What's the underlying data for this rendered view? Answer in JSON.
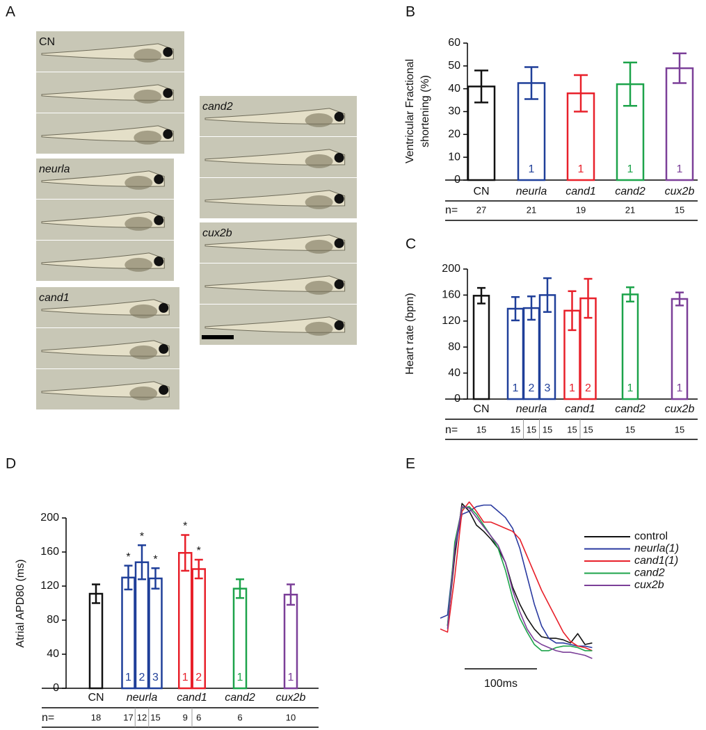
{
  "panels": [
    "A",
    "B",
    "C",
    "D",
    "E"
  ],
  "fish_panel": {
    "groups": [
      {
        "label": "CN",
        "italic": false
      },
      {
        "label": "neurla",
        "italic": true
      },
      {
        "label": "cand1",
        "italic": true
      },
      {
        "label": "cand2",
        "italic": true
      },
      {
        "label": "cux2b",
        "italic": true
      }
    ]
  },
  "chart_data": [
    {
      "type": "grouped_bar",
      "ylabel": [
        "Ventricular Fractional",
        "shortening (%)"
      ],
      "ylim": [
        0,
        60
      ],
      "yticks": [
        0,
        10,
        20,
        30,
        40,
        50,
        60
      ],
      "n_label": "n=",
      "groups": [
        {
          "name": "CN",
          "italic": false,
          "color": "#111111",
          "values": [
            41
          ],
          "errors": [
            7
          ],
          "bar_labels": [
            null
          ],
          "n": [
            27
          ],
          "annotations": [
            null
          ]
        },
        {
          "name": "neurla",
          "italic": true,
          "color": "#1f3f99",
          "values": [
            42.5
          ],
          "errors": [
            7
          ],
          "bar_labels": [
            "1"
          ],
          "n": [
            21
          ],
          "annotations": [
            null
          ]
        },
        {
          "name": "cand1",
          "italic": true,
          "color": "#e8202a",
          "values": [
            38
          ],
          "errors": [
            8
          ],
          "bar_labels": [
            "1"
          ],
          "n": [
            19
          ],
          "annotations": [
            null
          ]
        },
        {
          "name": "cand2",
          "italic": true,
          "color": "#1ca34a",
          "values": [
            42
          ],
          "errors": [
            9.5
          ],
          "bar_labels": [
            "1"
          ],
          "n": [
            21
          ],
          "annotations": [
            null
          ]
        },
        {
          "name": "cux2b",
          "italic": true,
          "color": "#7b3f98",
          "values": [
            49
          ],
          "errors": [
            6.5
          ],
          "bar_labels": [
            "1"
          ],
          "n": [
            15
          ],
          "annotations": [
            null
          ]
        }
      ]
    },
    {
      "type": "grouped_bar",
      "ylabel": [
        "Heart rate (bpm)"
      ],
      "ylim": [
        0,
        200
      ],
      "yticks": [
        0,
        40,
        80,
        120,
        160,
        200
      ],
      "n_label": "n=",
      "groups": [
        {
          "name": "CN",
          "italic": false,
          "color": "#111111",
          "values": [
            159
          ],
          "errors": [
            12
          ],
          "bar_labels": [
            null
          ],
          "n": [
            15
          ],
          "annotations": [
            null
          ]
        },
        {
          "name": "neurla",
          "italic": true,
          "color": "#1f3f99",
          "values": [
            139,
            140,
            160
          ],
          "errors": [
            18,
            18,
            26
          ],
          "bar_labels": [
            "1",
            "2",
            "3"
          ],
          "n": [
            15,
            15,
            15
          ],
          "annotations": [
            null,
            null,
            null
          ]
        },
        {
          "name": "cand1",
          "italic": true,
          "color": "#e8202a",
          "values": [
            136,
            155
          ],
          "errors": [
            30,
            30
          ],
          "bar_labels": [
            "1",
            "2"
          ],
          "n": [
            15,
            15
          ],
          "annotations": [
            null,
            null
          ]
        },
        {
          "name": "cand2",
          "italic": true,
          "color": "#1ca34a",
          "values": [
            161
          ],
          "errors": [
            11
          ],
          "bar_labels": [
            "1"
          ],
          "n": [
            15
          ],
          "annotations": [
            null
          ]
        },
        {
          "name": "cux2b",
          "italic": true,
          "color": "#7b3f98",
          "values": [
            154
          ],
          "errors": [
            10
          ],
          "bar_labels": [
            "1"
          ],
          "n": [
            15
          ],
          "annotations": [
            null
          ]
        }
      ]
    },
    {
      "type": "grouped_bar",
      "ylabel": [
        "Atrial APD80 (ms)"
      ],
      "ylim": [
        0,
        200
      ],
      "yticks": [
        0,
        40,
        80,
        120,
        160,
        200
      ],
      "n_label": "n=",
      "groups": [
        {
          "name": "CN",
          "italic": false,
          "color": "#111111",
          "values": [
            111
          ],
          "errors": [
            11
          ],
          "bar_labels": [
            null
          ],
          "n": [
            18
          ],
          "annotations": [
            null
          ]
        },
        {
          "name": "neurla",
          "italic": true,
          "color": "#1f3f99",
          "values": [
            130,
            148,
            129
          ],
          "errors": [
            14,
            20,
            12
          ],
          "bar_labels": [
            "1",
            "2",
            "3"
          ],
          "n": [
            17,
            12,
            15
          ],
          "annotations": [
            "*",
            "*",
            "*"
          ]
        },
        {
          "name": "cand1",
          "italic": true,
          "color": "#e8202a",
          "values": [
            159,
            140
          ],
          "errors": [
            21,
            11
          ],
          "bar_labels": [
            "1",
            "2"
          ],
          "n": [
            9,
            6
          ],
          "annotations": [
            "*",
            "*"
          ]
        },
        {
          "name": "cand2",
          "italic": true,
          "color": "#1ca34a",
          "values": [
            117
          ],
          "errors": [
            11
          ],
          "bar_labels": [
            "1"
          ],
          "n": [
            6
          ],
          "annotations": [
            null
          ]
        },
        {
          "name": "cux2b",
          "italic": true,
          "color": "#7b3f98",
          "values": [
            110
          ],
          "errors": [
            12
          ],
          "bar_labels": [
            "1"
          ],
          "n": [
            10
          ],
          "annotations": [
            null
          ]
        }
      ]
    },
    {
      "type": "line",
      "xlim": [
        0,
        215
      ],
      "ylim": [
        -5,
        100
      ],
      "x": [
        0,
        10,
        20,
        30,
        40,
        50,
        60,
        70,
        80,
        90,
        100,
        110,
        120,
        130,
        140,
        150,
        160,
        170,
        180,
        190,
        200,
        210
      ],
      "scale_bar": {
        "value": 100,
        "label": "100ms"
      },
      "series": [
        {
          "name": "control",
          "italic": false,
          "color": "#111111",
          "values": [
            null,
            20,
            65,
            99,
            94,
            85,
            81,
            76,
            70,
            61,
            45,
            34,
            25,
            18,
            13,
            12,
            12,
            11,
            9,
            15,
            8,
            9
          ]
        },
        {
          "name": "neurla(1)",
          "italic": true,
          "color": "#2a3aa0",
          "values": [
            25,
            27,
            70,
            92,
            94,
            97,
            98,
            98,
            94,
            90,
            83,
            70,
            52,
            34,
            20,
            12,
            9,
            9,
            8,
            7,
            7,
            6
          ]
        },
        {
          "name": "cand1(1)",
          "italic": true,
          "color": "#e8202a",
          "values": [
            18,
            16,
            52,
            94,
            100,
            94,
            87,
            87,
            85,
            83,
            81,
            76,
            65,
            54,
            43,
            34,
            25,
            16,
            10,
            7,
            6,
            4
          ]
        },
        {
          "name": "cand2",
          "italic": true,
          "color": "#1ca34a",
          "values": [
            null,
            20,
            74,
            96,
            97,
            92,
            85,
            78,
            70,
            56,
            38,
            25,
            16,
            8,
            4,
            4,
            6,
            7,
            7,
            6,
            4,
            4
          ]
        },
        {
          "name": "cux2b",
          "italic": true,
          "color": "#7b3f98",
          "values": [
            null,
            18,
            70,
            97,
            96,
            90,
            84,
            78,
            72,
            61,
            43,
            29,
            18,
            11,
            8,
            6,
            4,
            3,
            3,
            2,
            1,
            -1
          ]
        }
      ]
    }
  ]
}
